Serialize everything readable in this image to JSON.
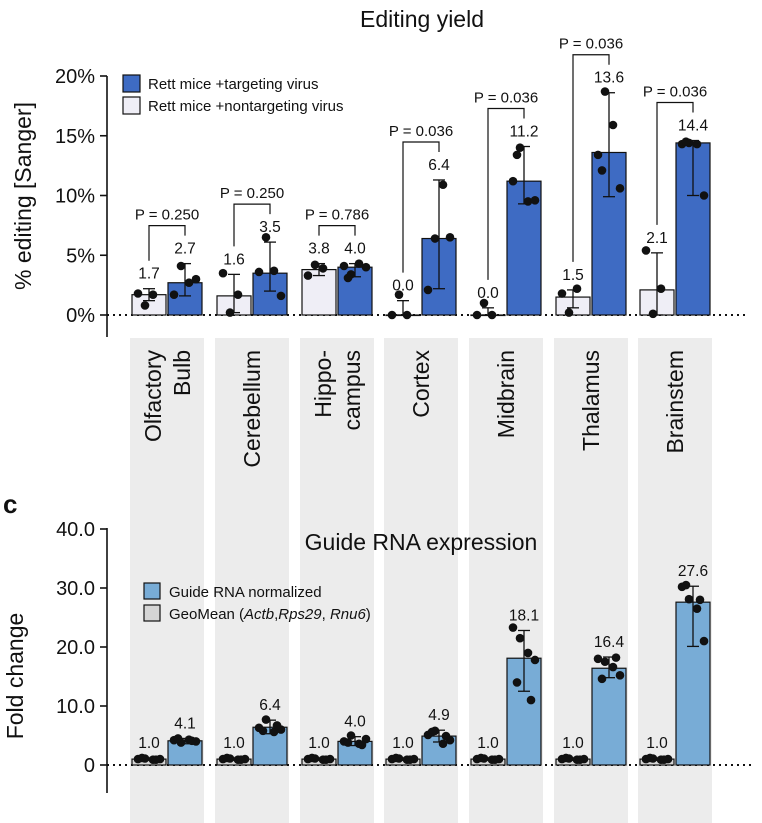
{
  "panel_c_letter": "c",
  "colors": {
    "targeting": "#3e6bc3",
    "nontargeting": "#efeef6",
    "guide": "#78acd6",
    "geomean": "#d5d5d5",
    "band": "#ececec"
  },
  "chart_data": [
    {
      "type": "bar",
      "title": "Editing yield",
      "ylabel": "% editing [Sanger]",
      "ylim": [
        -2,
        20
      ],
      "yticks": [
        0,
        5,
        10,
        15,
        20
      ],
      "ytick_labels": [
        "0%",
        "5%",
        "10%",
        "15%",
        "20%"
      ],
      "categories": [
        "Olfactory Bulb",
        "Cerebellum",
        "Hippo- campus",
        "Cortex",
        "Midbrain",
        "Thalamus",
        "Brainstem"
      ],
      "category_lines": [
        [
          "Olfactory",
          "Bulb"
        ],
        [
          "Cerebellum"
        ],
        [
          "Hippo-",
          "campus"
        ],
        [
          "Cortex"
        ],
        [
          "Midbrain"
        ],
        [
          "Thalamus"
        ],
        [
          "Brainstem"
        ]
      ],
      "legend": [
        "Rett mice +targeting virus",
        "Rett mice +nontargeting virus"
      ],
      "series": [
        {
          "name": "Rett mice +nontargeting virus",
          "values": [
            1.7,
            1.6,
            3.8,
            0.0,
            0.0,
            1.5,
            2.1
          ],
          "labels": [
            "1.7",
            "1.6",
            "3.8",
            "0.0",
            "0.0",
            "1.5",
            "2.1"
          ],
          "error": [
            [
              1.2,
              2.2
            ],
            [
              0.2,
              3.4
            ],
            [
              3.3,
              4.3
            ],
            [
              0.0,
              1.2
            ],
            [
              0.0,
              0.6
            ],
            [
              0.6,
              2.1
            ],
            [
              0.0,
              5.2
            ]
          ],
          "points": [
            [
              1.8,
              0.8,
              1.7
            ],
            [
              3.5,
              0.2,
              1.7
            ],
            [
              3.3,
              4.2,
              3.9
            ],
            [
              0.0,
              1.7,
              0.0
            ],
            [
              0.0,
              1.0,
              0.0
            ],
            [
              1.8,
              0.2,
              2.2
            ],
            [
              5.4,
              0.1,
              2.2
            ]
          ]
        },
        {
          "name": "Rett mice +targeting virus",
          "values": [
            2.7,
            3.5,
            4.0,
            6.4,
            11.2,
            13.6,
            14.4
          ],
          "labels": [
            "2.7",
            "3.5",
            "4.0",
            "6.4",
            "11.2",
            "13.6",
            "14.4"
          ],
          "error": [
            [
              1.6,
              4.3
            ],
            [
              2.0,
              6.1
            ],
            [
              3.2,
              4.3
            ],
            [
              2.2,
              11.3
            ],
            [
              9.3,
              14.1
            ],
            [
              9.9,
              18.6
            ],
            [
              10.0,
              14.6
            ]
          ],
          "points": [
            [
              1.7,
              4.1,
              2.7,
              3.0
            ],
            [
              3.6,
              6.5,
              3.7,
              1.6
            ],
            [
              4.1,
              3.4,
              4.3,
              4.0,
              3.1
            ],
            [
              2.1,
              6.4,
              10.9,
              6.5
            ],
            [
              11.2,
              14.0,
              9.5,
              9.6,
              13.4
            ],
            [
              13.4,
              18.7,
              15.9,
              10.6,
              12.1
            ],
            [
              14.3,
              14.4,
              14.3,
              10.0,
              14.5
            ]
          ]
        }
      ],
      "pvalues": [
        {
          "group": 0,
          "label": "P = 0.250"
        },
        {
          "group": 1,
          "label": "P = 0.250"
        },
        {
          "group": 2,
          "label": "P = 0.786"
        },
        {
          "group": 3,
          "label": "P = 0.036"
        },
        {
          "group": 4,
          "label": "P = 0.036"
        },
        {
          "group": 5,
          "label": "P = 0.036"
        },
        {
          "group": 6,
          "label": "P = 0.036"
        }
      ]
    },
    {
      "type": "bar",
      "title": "Guide RNA expression",
      "ylabel": "Fold change",
      "ylim": [
        -5,
        40
      ],
      "yticks": [
        0,
        10,
        20,
        30,
        40
      ],
      "ytick_labels": [
        "0",
        "10.0",
        "20.0",
        "30.0",
        "40.0"
      ],
      "categories": [
        "Olfactory Bulb",
        "Cerebellum",
        "Hippocampus",
        "Cortex",
        "Midbrain",
        "Thalamus",
        "Brainstem"
      ],
      "legend": [
        "Guide RNA normalized",
        "GeoMean (Actb,Rps29, Rnu6)"
      ],
      "legend_parts": {
        "guide": "Guide RNA normalized",
        "geo_prefix": "GeoMean (",
        "geo_genes": [
          "Actb",
          "Rps29",
          "Rnu6"
        ],
        "geo_seps": [
          ",",
          ", "
        ],
        "geo_suffix": ")"
      },
      "series": [
        {
          "name": "GeoMean (Actb,Rps29, Rnu6)",
          "values": [
            1.0,
            1.0,
            1.0,
            1.0,
            1.0,
            1.0,
            1.0
          ],
          "labels": [
            "1.0",
            "1.0",
            "1.0",
            "1.0",
            "1.0",
            "1.0",
            "1.0"
          ],
          "error": [
            [
              0.8,
              1.2
            ],
            [
              0.8,
              1.2
            ],
            [
              0.8,
              1.2
            ],
            [
              0.8,
              1.2
            ],
            [
              0.8,
              1.2
            ],
            [
              0.8,
              1.2
            ],
            [
              0.8,
              1.2
            ]
          ],
          "points": [
            [
              1.0,
              1.1,
              0.9,
              1.0,
              1.2,
              0.9
            ],
            [
              1.0,
              1.1,
              0.9,
              1.0,
              1.2,
              0.9
            ],
            [
              1.0,
              1.1,
              0.9,
              1.0,
              1.2,
              0.9
            ],
            [
              1.0,
              1.1,
              0.9,
              1.0,
              1.2,
              0.9
            ],
            [
              1.0,
              1.1,
              0.9,
              1.0,
              1.2,
              0.9
            ],
            [
              1.0,
              1.1,
              0.9,
              1.0,
              1.2,
              0.9
            ],
            [
              1.0,
              1.1,
              0.9,
              1.0,
              1.2,
              0.9
            ]
          ]
        },
        {
          "name": "Guide RNA normalized",
          "values": [
            4.1,
            6.4,
            4.0,
            4.9,
            18.1,
            16.4,
            27.6
          ],
          "labels": [
            "4.1",
            "6.4",
            "4.0",
            "4.9",
            "18.1",
            "16.4",
            "27.6"
          ],
          "error": [
            [
              3.6,
              4.5
            ],
            [
              5.3,
              7.6
            ],
            [
              3.3,
              4.8
            ],
            [
              3.9,
              5.9
            ],
            [
              12.5,
              22.8
            ],
            [
              14.8,
              18.3
            ],
            [
              20.1,
              30.3
            ]
          ],
          "points": [
            [
              4.2,
              3.8,
              4.3,
              4.0,
              4.5,
              4.1
            ],
            [
              6.3,
              7.7,
              5.6,
              6.0,
              5.8,
              6.7
            ],
            [
              4.0,
              5.0,
              3.6,
              4.4,
              3.8,
              3.4
            ],
            [
              5.1,
              5.8,
              3.6,
              4.2,
              5.6,
              4.9
            ],
            [
              23.3,
              21.5,
              19.0,
              17.8,
              14.0,
              11.0
            ],
            [
              18.0,
              17.5,
              16.6,
              15.2,
              14.6,
              18.2
            ],
            [
              30.2,
              28.1,
              26.5,
              21.0,
              30.5,
              28.0
            ]
          ]
        }
      ]
    }
  ]
}
